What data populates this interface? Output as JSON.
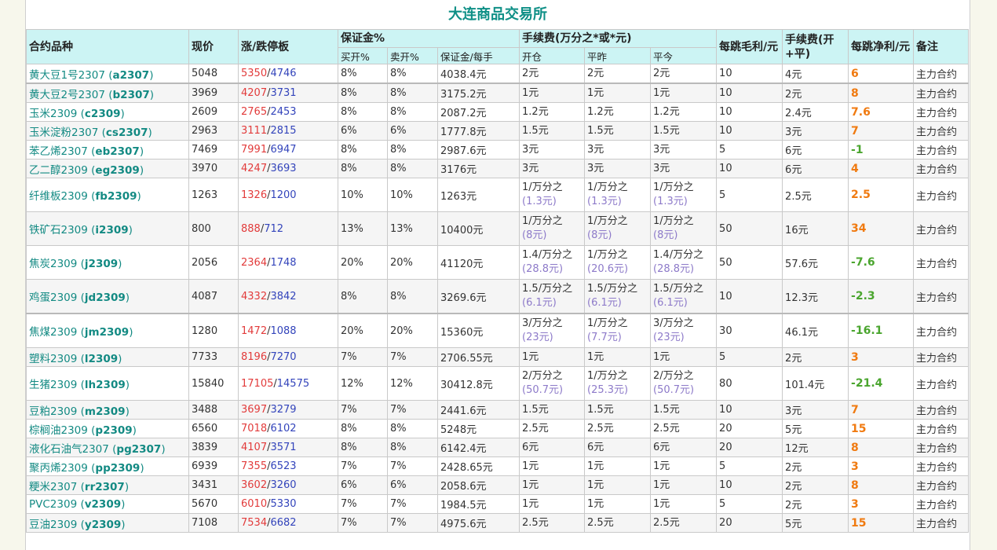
{
  "title": "大连商品交易所",
  "headers": {
    "contract": "合约品种",
    "price": "现价",
    "limit": "涨/跌停板",
    "margin_group": "保证金%",
    "fee_group": "手续费(万分之*或*元)",
    "tick_gross": "每跳毛利/元",
    "fee_total": "手续费(开+平)",
    "tick_net": "每跳净利/元",
    "note": "备注",
    "buy_open": "买开%",
    "sell_open": "卖开%",
    "margin_per_lot": "保证金/每手",
    "open": "开仓",
    "close_today": "平昨",
    "close_yesterday": "平今"
  },
  "rows": [
    {
      "name": "黄大豆1号2307",
      "code": "a2307",
      "price": "5048",
      "up": "5350",
      "down": "4746",
      "buy": "8%",
      "sell": "8%",
      "margin": "4038.4元",
      "open": "2元",
      "open_sub": "",
      "c1": "2元",
      "c1_sub": "",
      "c2": "2元",
      "c2_sub": "",
      "gross": "10",
      "fee": "4元",
      "net": "6",
      "net_sign": "pos",
      "note": "主力合约",
      "tall": false,
      "thick": false
    },
    {
      "name": "黄大豆2号2307",
      "code": "b2307",
      "price": "3969",
      "up": "4207",
      "down": "3731",
      "buy": "8%",
      "sell": "8%",
      "margin": "3175.2元",
      "open": "1元",
      "open_sub": "",
      "c1": "1元",
      "c1_sub": "",
      "c2": "1元",
      "c2_sub": "",
      "gross": "10",
      "fee": "2元",
      "net": "8",
      "net_sign": "pos",
      "note": "主力合约",
      "tall": false,
      "thick": true
    },
    {
      "name": "玉米2309",
      "code": "c2309",
      "price": "2609",
      "up": "2765",
      "down": "2453",
      "buy": "8%",
      "sell": "8%",
      "margin": "2087.2元",
      "open": "1.2元",
      "open_sub": "",
      "c1": "1.2元",
      "c1_sub": "",
      "c2": "1.2元",
      "c2_sub": "",
      "gross": "10",
      "fee": "2.4元",
      "net": "7.6",
      "net_sign": "pos",
      "note": "主力合约",
      "tall": false,
      "thick": false
    },
    {
      "name": "玉米淀粉2307",
      "code": "cs2307",
      "price": "2963",
      "up": "3111",
      "down": "2815",
      "buy": "6%",
      "sell": "6%",
      "margin": "1777.8元",
      "open": "1.5元",
      "open_sub": "",
      "c1": "1.5元",
      "c1_sub": "",
      "c2": "1.5元",
      "c2_sub": "",
      "gross": "10",
      "fee": "3元",
      "net": "7",
      "net_sign": "pos",
      "note": "主力合约",
      "tall": false,
      "thick": false
    },
    {
      "name": "苯乙烯2307",
      "code": "eb2307",
      "price": "7469",
      "up": "7991",
      "down": "6947",
      "buy": "8%",
      "sell": "8%",
      "margin": "2987.6元",
      "open": "3元",
      "open_sub": "",
      "c1": "3元",
      "c1_sub": "",
      "c2": "3元",
      "c2_sub": "",
      "gross": "5",
      "fee": "6元",
      "net": "-1",
      "net_sign": "neg",
      "note": "主力合约",
      "tall": false,
      "thick": false
    },
    {
      "name": "乙二醇2309",
      "code": "eg2309",
      "price": "3970",
      "up": "4247",
      "down": "3693",
      "buy": "8%",
      "sell": "8%",
      "margin": "3176元",
      "open": "3元",
      "open_sub": "",
      "c1": "3元",
      "c1_sub": "",
      "c2": "3元",
      "c2_sub": "",
      "gross": "10",
      "fee": "6元",
      "net": "4",
      "net_sign": "pos",
      "note": "主力合约",
      "tall": false,
      "thick": false
    },
    {
      "name": "纤维板2309",
      "code": "fb2309",
      "price": "1263",
      "up": "1326",
      "down": "1200",
      "buy": "10%",
      "sell": "10%",
      "margin": "1263元",
      "open": "1/万分之",
      "open_sub": "(1.3元)",
      "c1": "1/万分之",
      "c1_sub": "(1.3元)",
      "c2": "1/万分之",
      "c2_sub": "(1.3元)",
      "gross": "5",
      "fee": "2.5元",
      "net": "2.5",
      "net_sign": "pos",
      "note": "主力合约",
      "tall": true,
      "thick": false
    },
    {
      "name": "铁矿石2309",
      "code": "i2309",
      "price": "800",
      "up": "888",
      "down": "712",
      "buy": "13%",
      "sell": "13%",
      "margin": "10400元",
      "open": "1/万分之",
      "open_sub": "(8元)",
      "c1": "1/万分之",
      "c1_sub": "(8元)",
      "c2": "1/万分之",
      "c2_sub": "(8元)",
      "gross": "50",
      "fee": "16元",
      "net": "34",
      "net_sign": "pos",
      "note": "主力合约",
      "tall": true,
      "thick": false
    },
    {
      "name": "焦炭2309",
      "code": "j2309",
      "price": "2056",
      "up": "2364",
      "down": "1748",
      "buy": "20%",
      "sell": "20%",
      "margin": "41120元",
      "open": "1.4/万分之",
      "open_sub": "(28.8元)",
      "c1": "1/万分之",
      "c1_sub": "(20.6元)",
      "c2": "1.4/万分之",
      "c2_sub": "(28.8元)",
      "gross": "50",
      "fee": "57.6元",
      "net": "-7.6",
      "net_sign": "neg",
      "note": "主力合约",
      "tall": true,
      "thick": false
    },
    {
      "name": "鸡蛋2309",
      "code": "jd2309",
      "price": "4087",
      "up": "4332",
      "down": "3842",
      "buy": "8%",
      "sell": "8%",
      "margin": "3269.6元",
      "open": "1.5/万分之",
      "open_sub": "(6.1元)",
      "c1": "1.5/万分之",
      "c1_sub": "(6.1元)",
      "c2": "1.5/万分之",
      "c2_sub": "(6.1元)",
      "gross": "10",
      "fee": "12.3元",
      "net": "-2.3",
      "net_sign": "neg",
      "note": "主力合约",
      "tall": true,
      "thick": false
    },
    {
      "name": "焦煤2309",
      "code": "jm2309",
      "price": "1280",
      "up": "1472",
      "down": "1088",
      "buy": "20%",
      "sell": "20%",
      "margin": "15360元",
      "open": "3/万分之",
      "open_sub": "(23元)",
      "c1": "1/万分之",
      "c1_sub": "(7.7元)",
      "c2": "3/万分之",
      "c2_sub": "(23元)",
      "gross": "30",
      "fee": "46.1元",
      "net": "-16.1",
      "net_sign": "neg",
      "note": "主力合约",
      "tall": true,
      "thick": true
    },
    {
      "name": "塑料2309",
      "code": "l2309",
      "price": "7733",
      "up": "8196",
      "down": "7270",
      "buy": "7%",
      "sell": "7%",
      "margin": "2706.55元",
      "open": "1元",
      "open_sub": "",
      "c1": "1元",
      "c1_sub": "",
      "c2": "1元",
      "c2_sub": "",
      "gross": "5",
      "fee": "2元",
      "net": "3",
      "net_sign": "pos",
      "note": "主力合约",
      "tall": false,
      "thick": false
    },
    {
      "name": "生猪2309",
      "code": "lh2309",
      "price": "15840",
      "up": "17105",
      "down": "14575",
      "buy": "12%",
      "sell": "12%",
      "margin": "30412.8元",
      "open": "2/万分之",
      "open_sub": "(50.7元)",
      "c1": "1/万分之",
      "c1_sub": "(25.3元)",
      "c2": "2/万分之",
      "c2_sub": "(50.7元)",
      "gross": "80",
      "fee": "101.4元",
      "net": "-21.4",
      "net_sign": "neg",
      "note": "主力合约",
      "tall": true,
      "thick": false
    },
    {
      "name": "豆粕2309",
      "code": "m2309",
      "price": "3488",
      "up": "3697",
      "down": "3279",
      "buy": "7%",
      "sell": "7%",
      "margin": "2441.6元",
      "open": "1.5元",
      "open_sub": "",
      "c1": "1.5元",
      "c1_sub": "",
      "c2": "1.5元",
      "c2_sub": "",
      "gross": "10",
      "fee": "3元",
      "net": "7",
      "net_sign": "pos",
      "note": "主力合约",
      "tall": false,
      "thick": false
    },
    {
      "name": "棕榈油2309",
      "code": "p2309",
      "price": "6560",
      "up": "7018",
      "down": "6102",
      "buy": "8%",
      "sell": "8%",
      "margin": "5248元",
      "open": "2.5元",
      "open_sub": "",
      "c1": "2.5元",
      "c1_sub": "",
      "c2": "2.5元",
      "c2_sub": "",
      "gross": "20",
      "fee": "5元",
      "net": "15",
      "net_sign": "pos",
      "note": "主力合约",
      "tall": false,
      "thick": false
    },
    {
      "name": "液化石油气2307",
      "code": "pg2307",
      "price": "3839",
      "up": "4107",
      "down": "3571",
      "buy": "8%",
      "sell": "8%",
      "margin": "6142.4元",
      "open": "6元",
      "open_sub": "",
      "c1": "6元",
      "c1_sub": "",
      "c2": "6元",
      "c2_sub": "",
      "gross": "20",
      "fee": "12元",
      "net": "8",
      "net_sign": "pos",
      "note": "主力合约",
      "tall": false,
      "thick": false
    },
    {
      "name": "聚丙烯2309",
      "code": "pp2309",
      "price": "6939",
      "up": "7355",
      "down": "6523",
      "buy": "7%",
      "sell": "7%",
      "margin": "2428.65元",
      "open": "1元",
      "open_sub": "",
      "c1": "1元",
      "c1_sub": "",
      "c2": "1元",
      "c2_sub": "",
      "gross": "5",
      "fee": "2元",
      "net": "3",
      "net_sign": "pos",
      "note": "主力合约",
      "tall": false,
      "thick": false
    },
    {
      "name": "粳米2307",
      "code": "rr2307",
      "price": "3431",
      "up": "3602",
      "down": "3260",
      "buy": "6%",
      "sell": "6%",
      "margin": "2058.6元",
      "open": "1元",
      "open_sub": "",
      "c1": "1元",
      "c1_sub": "",
      "c2": "1元",
      "c2_sub": "",
      "gross": "10",
      "fee": "2元",
      "net": "8",
      "net_sign": "pos",
      "note": "主力合约",
      "tall": false,
      "thick": false
    },
    {
      "name": "PVC2309",
      "code": "v2309",
      "price": "5670",
      "up": "6010",
      "down": "5330",
      "buy": "7%",
      "sell": "7%",
      "margin": "1984.5元",
      "open": "1元",
      "open_sub": "",
      "c1": "1元",
      "c1_sub": "",
      "c2": "1元",
      "c2_sub": "",
      "gross": "5",
      "fee": "2元",
      "net": "3",
      "net_sign": "pos",
      "note": "主力合约",
      "tall": false,
      "thick": false
    },
    {
      "name": "豆油2309",
      "code": "y2309",
      "price": "7108",
      "up": "7534",
      "down": "6682",
      "buy": "7%",
      "sell": "7%",
      "margin": "4975.6元",
      "open": "2.5元",
      "open_sub": "",
      "c1": "2.5元",
      "c1_sub": "",
      "c2": "2.5元",
      "c2_sub": "",
      "gross": "20",
      "fee": "5元",
      "net": "15",
      "net_sign": "pos",
      "note": "主力合约",
      "tall": false,
      "thick": false
    }
  ]
}
